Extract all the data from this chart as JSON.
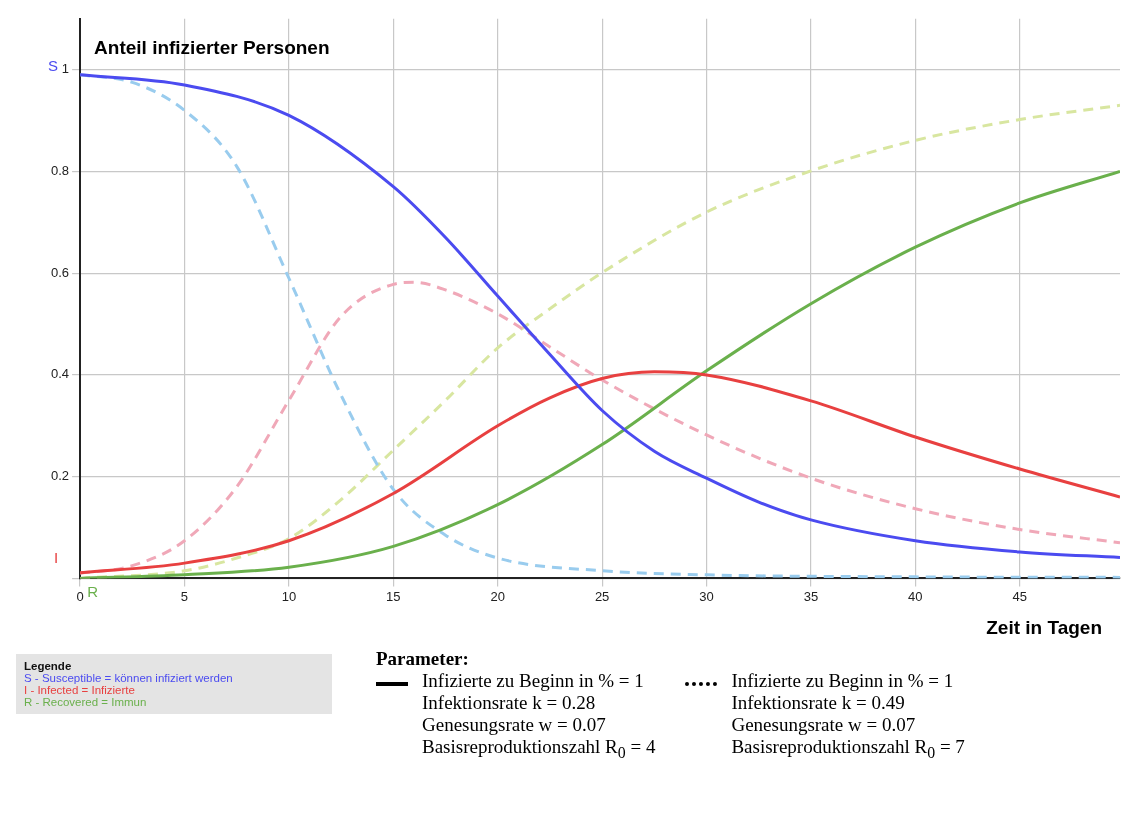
{
  "chart_data": {
    "type": "line",
    "ylabel": "Anteil infizierter Personen",
    "xlabel": "Zeit in Tagen",
    "xlim": [
      0,
      49.8
    ],
    "xticks": [
      0,
      5,
      10,
      15,
      20,
      25,
      30,
      35,
      40,
      45
    ],
    "ylim": [
      0,
      1.1
    ],
    "yticks": [
      {
        "value": 0,
        "label": null
      },
      0.2,
      0.4,
      0.6,
      0.8,
      1
    ],
    "grid": true,
    "legend": "bottom left",
    "legend_title": "Legende",
    "marker": "none",
    "series": [
      {
        "name": "S - Susceptible = können infiziert werden",
        "color": "#4b4bf0",
        "line_style": "solid",
        "x": [
          0,
          5,
          10,
          15,
          17.5,
          20,
          22.5,
          25,
          27.5,
          30,
          32.5,
          35,
          40,
          45,
          49.8
        ],
        "values": [
          0.99,
          0.97,
          0.91,
          0.77,
          0.67,
          0.555,
          0.44,
          0.33,
          0.25,
          0.197,
          0.15,
          0.115,
          0.074,
          0.052,
          0.041
        ]
      },
      {
        "name": "I - Infected = Infizierte",
        "color": "#e84040",
        "line_style": "solid",
        "x": [
          0,
          5,
          10,
          15,
          20,
          22.5,
          25,
          27.5,
          30,
          35,
          40,
          45,
          49.8
        ],
        "values": [
          0.011,
          0.03,
          0.074,
          0.167,
          0.3,
          0.355,
          0.393,
          0.406,
          0.4,
          0.349,
          0.278,
          0.215,
          0.16
        ]
      },
      {
        "name": "R - Recovered = Immun",
        "color": "#6ab04c",
        "line_style": "solid",
        "x": [
          0,
          5,
          10,
          15,
          20,
          25,
          30,
          35,
          40,
          45,
          49.8
        ],
        "values": [
          0,
          0.007,
          0.022,
          0.063,
          0.145,
          0.263,
          0.408,
          0.54,
          0.651,
          0.738,
          0.8
        ]
      },
      {
        "color": "#99ccee",
        "line_style": "dashed",
        "x": [
          0,
          2.5,
          5,
          7.5,
          10,
          12.5,
          15,
          17.5,
          20,
          25,
          30,
          40,
          49.8
        ],
        "values": [
          0.99,
          0.975,
          0.92,
          0.81,
          0.59,
          0.36,
          0.175,
          0.085,
          0.04,
          0.015,
          0.007,
          0.003,
          0.002
        ]
      },
      {
        "color": "#f0a8b8",
        "line_style": "dashed",
        "x": [
          0,
          2.5,
          5,
          7.5,
          10,
          12.5,
          15,
          16,
          17.5,
          20,
          22.5,
          25,
          30,
          35,
          40,
          45,
          49.8
        ],
        "values": [
          0.01,
          0.025,
          0.074,
          0.18,
          0.35,
          0.515,
          0.578,
          0.582,
          0.567,
          0.52,
          0.455,
          0.39,
          0.282,
          0.197,
          0.137,
          0.096,
          0.07
        ]
      },
      {
        "color": "#d8e6a0",
        "line_style": "dashed",
        "x": [
          0,
          5,
          7.5,
          10,
          12.5,
          15,
          17.5,
          20,
          22.5,
          25,
          30,
          35,
          40,
          45,
          49.8
        ],
        "values": [
          0,
          0.015,
          0.04,
          0.078,
          0.155,
          0.252,
          0.35,
          0.453,
          0.53,
          0.601,
          0.72,
          0.801,
          0.861,
          0.902,
          0.93
        ]
      }
    ],
    "annotations": [
      "S",
      "I",
      "R",
      "Parameter:",
      "Infizierte zu Beginn in % = 1",
      "Infektionsrate k = 0.28",
      "Genesungsrate w = 0.07",
      "Basisreproduktionszahl R$_{0}$ = 4",
      "Infizierte zu Beginn in % = 1",
      "Infektionsrate k = 0.49",
      "Genesungsrate w = 0.07",
      "Basisreproduktionszahl R$_{0}$ = 7"
    ]
  }
}
